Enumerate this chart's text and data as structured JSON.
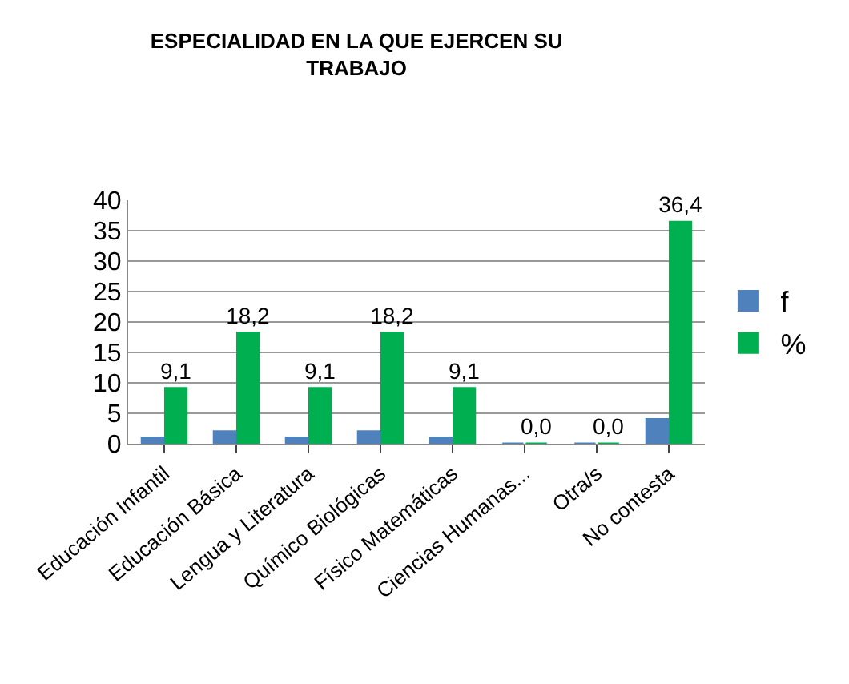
{
  "chart_data": {
    "type": "bar",
    "title": "ESPECIALIDAD EN LA QUE EJERCEN SU TRABAJO",
    "categories": [
      "Educación Infantil",
      "Educación Básica",
      "Lengua y Literatura",
      "Químico Biológicas",
      "Físico Matemáticas",
      "Ciencias Humanas...",
      "Otra/s",
      "No contesta"
    ],
    "series": [
      {
        "name": "f",
        "color": "#4f81bd",
        "values": [
          1,
          2,
          1,
          2,
          1,
          0,
          0,
          4
        ]
      },
      {
        "name": "%",
        "color": "#00b050",
        "values": [
          9.1,
          18.2,
          9.1,
          18.2,
          9.1,
          0.0,
          0.0,
          36.4
        ],
        "value_labels": [
          "9,1",
          "18,2",
          "9,1",
          "18,2",
          "9,1",
          "0,0",
          "0,0",
          "36,4"
        ]
      }
    ],
    "ylim": [
      0,
      40
    ],
    "yticks": [
      0,
      5,
      10,
      15,
      20,
      25,
      30,
      35,
      40
    ],
    "grid": "y",
    "legend": "right"
  }
}
